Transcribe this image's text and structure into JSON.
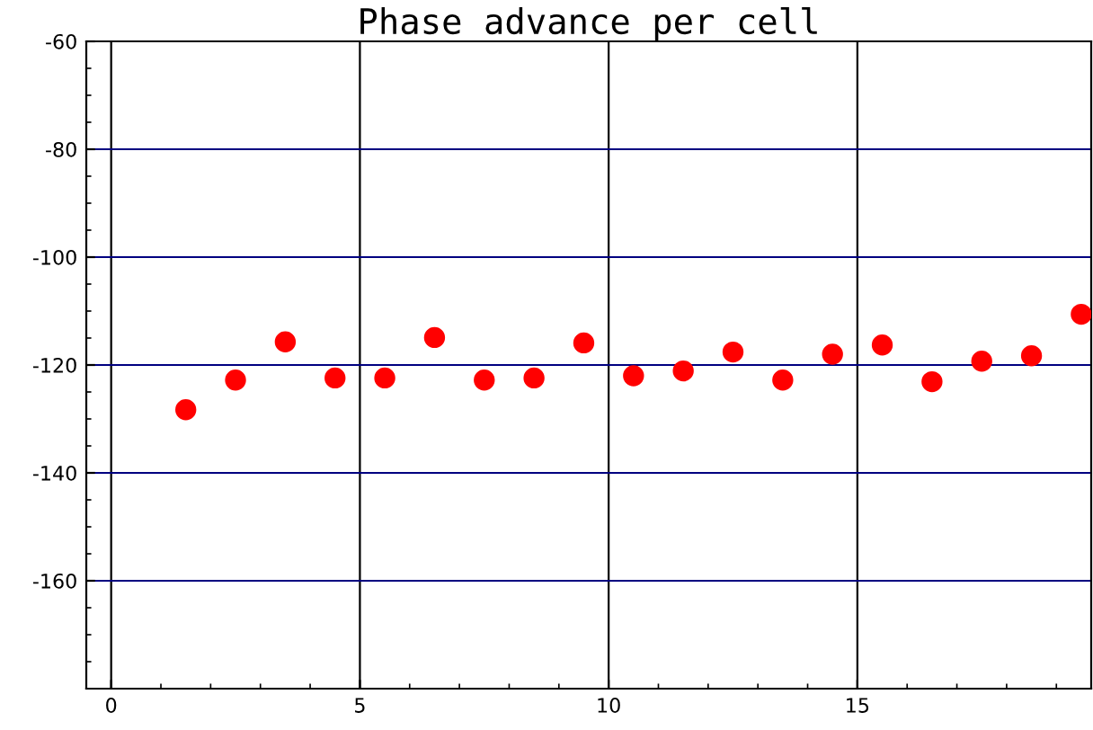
{
  "chart_data": {
    "type": "scatter",
    "title": "Phase advance per cell",
    "x": [
      1.5,
      2.5,
      3.5,
      4.5,
      5.5,
      6.5,
      7.5,
      8.5,
      9.5,
      10.5,
      11.5,
      12.5,
      13.5,
      14.5,
      15.5,
      16.5,
      17.5,
      18.5,
      19.5
    ],
    "series": [
      {
        "color": "#ff0000",
        "values": [
          -128.3,
          -122.8,
          -115.7,
          -122.4,
          -122.4,
          -114.9,
          -122.8,
          -122.4,
          -115.9,
          -122.0,
          -121.1,
          -117.6,
          -122.8,
          -118.0,
          -116.3,
          -123.1,
          -119.3,
          -118.3,
          -110.6
        ]
      }
    ],
    "marker": "circle",
    "xlim": [
      -0.5,
      19.7
    ],
    "xticks": [
      0,
      5,
      10,
      15
    ],
    "ylim": [
      -180,
      -60
    ],
    "yticks": [
      -60,
      -80,
      -100,
      -120,
      -140,
      -160
    ],
    "grid": true
  }
}
